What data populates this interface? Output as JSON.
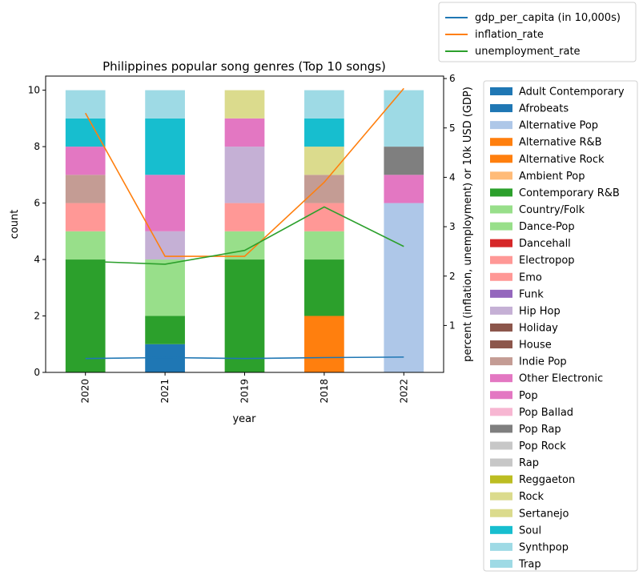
{
  "chart_data": {
    "type": "bar",
    "title": "Philippines popular song genres (Top 10 songs)",
    "xlabel": "year",
    "ylabel": "count",
    "y2label": "percent (inflation, unemployment) or 10k USD (GDP)",
    "categories": [
      "2020",
      "2021",
      "2019",
      "2018",
      "2022"
    ],
    "ylim": [
      0,
      10.5
    ],
    "yticks": [
      0,
      2,
      4,
      6,
      8,
      10
    ],
    "y2lim": [
      0.05,
      6.05
    ],
    "y2ticks": [
      1,
      2,
      3,
      4,
      5,
      6
    ],
    "stacked": true,
    "bar_legend_placement": "outside-right",
    "line_legend_placement": "outside-top-right",
    "bar_series": [
      {
        "name": "Adult Contemporary",
        "color": "#1f77b4",
        "values": [
          0,
          0,
          0,
          0,
          0
        ]
      },
      {
        "name": "Afrobeats",
        "color": "#1f77b4",
        "values": [
          0,
          1,
          0,
          0,
          0
        ]
      },
      {
        "name": "Alternative Pop",
        "color": "#aec7e8",
        "values": [
          0,
          0,
          0,
          0,
          6
        ]
      },
      {
        "name": "Alternative R&B",
        "color": "#ff7f0e",
        "values": [
          0,
          0,
          0,
          0,
          0
        ]
      },
      {
        "name": "Alternative Rock",
        "color": "#ff7f0e",
        "values": [
          0,
          0,
          0,
          2,
          0
        ]
      },
      {
        "name": "Ambient Pop",
        "color": "#ffbb78",
        "values": [
          0,
          0,
          0,
          0,
          0
        ]
      },
      {
        "name": "Contemporary R&B",
        "color": "#2ca02c",
        "values": [
          4,
          1,
          4,
          2,
          0
        ]
      },
      {
        "name": "Country/Folk",
        "color": "#98df8a",
        "values": [
          0,
          2,
          0,
          0,
          0
        ]
      },
      {
        "name": "Dance-Pop",
        "color": "#98df8a",
        "values": [
          1,
          0,
          1,
          1,
          0
        ]
      },
      {
        "name": "Dancehall",
        "color": "#d62728",
        "values": [
          0,
          0,
          0,
          0,
          0
        ]
      },
      {
        "name": "Electropop",
        "color": "#ff9896",
        "values": [
          1,
          0,
          1,
          1,
          0
        ]
      },
      {
        "name": "Emo",
        "color": "#ff9896",
        "values": [
          0,
          0,
          0,
          0,
          0
        ]
      },
      {
        "name": "Funk",
        "color": "#9467bd",
        "values": [
          0,
          0,
          0,
          0,
          0
        ]
      },
      {
        "name": "Hip Hop",
        "color": "#c5b0d5",
        "values": [
          0,
          1,
          2,
          0,
          0
        ]
      },
      {
        "name": "Holiday",
        "color": "#8c564b",
        "values": [
          0,
          0,
          0,
          0,
          0
        ]
      },
      {
        "name": "House",
        "color": "#8c564b",
        "values": [
          0,
          0,
          0,
          0,
          0
        ]
      },
      {
        "name": "Indie Pop",
        "color": "#c49c94",
        "values": [
          1,
          0,
          0,
          1,
          0
        ]
      },
      {
        "name": "Other Electronic",
        "color": "#e377c2",
        "values": [
          1,
          2,
          0,
          0,
          1
        ]
      },
      {
        "name": "Pop",
        "color": "#e377c2",
        "values": [
          0,
          0,
          1,
          0,
          0
        ]
      },
      {
        "name": "Pop Ballad",
        "color": "#f7b6d2",
        "values": [
          0,
          0,
          0,
          0,
          0
        ]
      },
      {
        "name": "Pop Rap",
        "color": "#7f7f7f",
        "values": [
          0,
          0,
          0,
          0,
          1
        ]
      },
      {
        "name": "Pop Rock",
        "color": "#c7c7c7",
        "values": [
          0,
          0,
          0,
          0,
          0
        ]
      },
      {
        "name": "Rap",
        "color": "#c7c7c7",
        "values": [
          0,
          0,
          0,
          0,
          0
        ]
      },
      {
        "name": "Reggaeton",
        "color": "#bcbd22",
        "values": [
          0,
          0,
          0,
          0,
          0
        ]
      },
      {
        "name": "Rock",
        "color": "#dbdb8d",
        "values": [
          0,
          0,
          1,
          1,
          0
        ]
      },
      {
        "name": "Sertanejo",
        "color": "#dbdb8d",
        "values": [
          0,
          0,
          0,
          0,
          0
        ]
      },
      {
        "name": "Soul",
        "color": "#17becf",
        "values": [
          1,
          2,
          0,
          1,
          0
        ]
      },
      {
        "name": "Synthpop",
        "color": "#9edae5",
        "values": [
          1,
          1,
          0,
          1,
          0
        ]
      },
      {
        "name": "Trap",
        "color": "#9edae5",
        "values": [
          0,
          0,
          0,
          0,
          2
        ]
      }
    ],
    "line_series": [
      {
        "name": "gdp_per_capita (in 10,000s)",
        "color": "#1f77b4",
        "values": [
          0.33,
          0.35,
          0.33,
          0.35,
          0.36
        ]
      },
      {
        "name": "inflation_rate",
        "color": "#ff7f0e",
        "values": [
          5.3,
          2.4,
          2.4,
          3.9,
          5.8
        ]
      },
      {
        "name": "unemployment_rate",
        "color": "#2ca02c",
        "values": [
          2.3,
          2.24,
          2.52,
          3.4,
          2.6
        ]
      }
    ]
  }
}
